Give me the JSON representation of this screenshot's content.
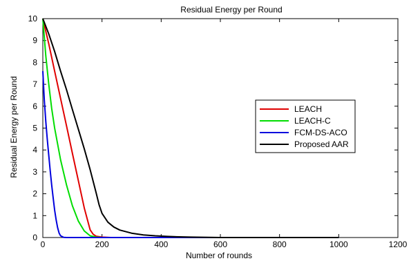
{
  "chart_data": {
    "type": "line",
    "title": "Residual Energy per Round",
    "xlabel": "Number of rounds",
    "ylabel": "Residual Energy per Round",
    "xlim": [
      0,
      1200
    ],
    "ylim": [
      0,
      10
    ],
    "xticks": [
      0,
      200,
      400,
      600,
      800,
      1000,
      1200
    ],
    "yticks": [
      0,
      1,
      2,
      3,
      4,
      5,
      6,
      7,
      8,
      9,
      10
    ],
    "grid": false,
    "legend_position": "right",
    "series": [
      {
        "name": "LEACH",
        "color": "#e00000",
        "x": [
          0,
          20,
          40,
          60,
          80,
          100,
          120,
          140,
          160,
          170,
          180,
          200,
          230,
          300,
          1000
        ],
        "y": [
          10,
          8.85,
          7.6,
          6.35,
          5.1,
          3.85,
          2.6,
          1.35,
          0.35,
          0.15,
          0.06,
          0.02,
          0.0,
          0.0,
          0.0
        ]
      },
      {
        "name": "LEACH-C",
        "color": "#00dd00",
        "x": [
          0,
          10,
          20,
          30,
          40,
          60,
          80,
          100,
          120,
          140,
          160,
          180,
          200,
          1000
        ],
        "y": [
          10,
          8.3,
          7.0,
          5.9,
          5.0,
          3.55,
          2.4,
          1.45,
          0.75,
          0.3,
          0.08,
          0.02,
          0.0,
          0.0
        ]
      },
      {
        "name": "FCM-DS-ACO",
        "color": "#0000dd",
        "x": [
          0,
          5,
          10,
          15,
          20,
          25,
          30,
          35,
          40,
          45,
          50,
          55,
          60,
          70,
          80,
          1000
        ],
        "y": [
          7.6,
          6.3,
          5.3,
          4.5,
          3.75,
          3.05,
          2.4,
          1.8,
          1.25,
          0.8,
          0.45,
          0.2,
          0.08,
          0.01,
          0.0,
          0.0
        ]
      },
      {
        "name": "Proposed AAR",
        "color": "#000000",
        "x": [
          0,
          20,
          40,
          60,
          80,
          100,
          120,
          140,
          160,
          180,
          190,
          200,
          220,
          240,
          260,
          300,
          340,
          380,
          420,
          460,
          500,
          600,
          1000
        ],
        "y": [
          10,
          9.3,
          8.5,
          7.6,
          6.75,
          5.85,
          4.95,
          4.05,
          3.1,
          2.05,
          1.5,
          1.1,
          0.7,
          0.48,
          0.34,
          0.2,
          0.12,
          0.08,
          0.05,
          0.03,
          0.02,
          0.0,
          0.0
        ]
      }
    ]
  }
}
